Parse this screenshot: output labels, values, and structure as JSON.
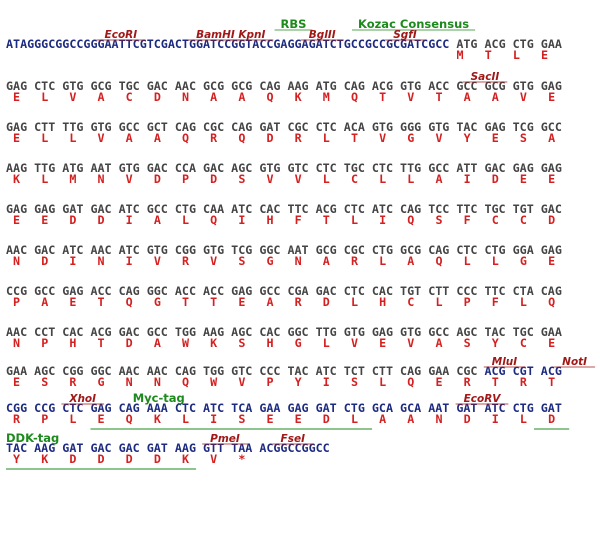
{
  "blocks": [
    {
      "annotations": [
        {
          "label": "RBS",
          "kind": "tag"
        },
        {
          "label": "Kozac Consensus",
          "kind": "tag"
        },
        {
          "label": "EcoRI",
          "kind": "site"
        },
        {
          "label": "BamHI",
          "kind": "site"
        },
        {
          "label": "KpnI",
          "kind": "site"
        },
        {
          "label": "BglII",
          "kind": "site"
        },
        {
          "label": "SgfI",
          "kind": "site"
        }
      ],
      "dna": [
        {
          "text": "ATAGGGCGGCCGGGAATTCGTCGACTGGATCCGGTACCGAGGAGATCTGCCGCCGCGATCGCC",
          "color": "#1c2a80"
        },
        {
          "text": " ATG ACG CTG GAA",
          "color": "#444444"
        }
      ],
      "protein": [
        "M",
        "T",
        "L",
        "E"
      ]
    },
    {
      "annotations": [
        {
          "label": "SacII",
          "kind": "site"
        }
      ],
      "dna": [
        {
          "text": "GAG CTC GTG GCG TGC GAC AAC GCG GCG CAG AAG ATG CAG ACG GTG ACC GCC GCG GTG GAG",
          "color": "#444444"
        }
      ],
      "protein": [
        "E",
        "L",
        "V",
        "A",
        "C",
        "D",
        "N",
        "A",
        "A",
        "Q",
        "K",
        "M",
        "Q",
        "T",
        "V",
        "T",
        "A",
        "A",
        "V",
        "E"
      ]
    },
    {
      "annotations": [],
      "dna": [
        {
          "text": "GAG CTT TTG GTG GCC GCT CAG CGC CAG GAT CGC CTC ACA GTG GGG GTG TAC GAG TCG GCC",
          "color": "#444444"
        }
      ],
      "protein": [
        "E",
        "L",
        "L",
        "V",
        "A",
        "A",
        "Q",
        "R",
        "Q",
        "D",
        "R",
        "L",
        "T",
        "V",
        "G",
        "V",
        "Y",
        "E",
        "S",
        "A"
      ]
    },
    {
      "annotations": [],
      "dna": [
        {
          "text": "AAG TTG ATG AAT GTG GAC CCA GAC AGC GTG GTC CTC TGC CTC TTG GCC ATT GAC GAG GAG",
          "color": "#444444"
        }
      ],
      "protein": [
        "K",
        "L",
        "M",
        "N",
        "V",
        "D",
        "P",
        "D",
        "S",
        "V",
        "V",
        "L",
        "C",
        "L",
        "L",
        "A",
        "I",
        "D",
        "E",
        "E"
      ]
    },
    {
      "annotations": [],
      "dna": [
        {
          "text": "GAG GAG GAT GAC ATC GCC CTG CAA ATC CAC TTC ACG CTC ATC CAG TCC TTC TGC TGT GAC",
          "color": "#444444"
        }
      ],
      "protein": [
        "E",
        "E",
        "D",
        "D",
        "I",
        "A",
        "L",
        "Q",
        "I",
        "H",
        "F",
        "T",
        "L",
        "I",
        "Q",
        "S",
        "F",
        "C",
        "C",
        "D"
      ]
    },
    {
      "annotations": [],
      "dna": [
        {
          "text": "AAC GAC ATC AAC ATC GTG CGG GTG TCG GGC AAT GCG CGC CTG GCG CAG CTC CTG GGA GAG",
          "color": "#444444"
        }
      ],
      "protein": [
        "N",
        "D",
        "I",
        "N",
        "I",
        "V",
        "R",
        "V",
        "S",
        "G",
        "N",
        "A",
        "R",
        "L",
        "A",
        "Q",
        "L",
        "L",
        "G",
        "E"
      ]
    },
    {
      "annotations": [],
      "dna": [
        {
          "text": "CCG GCC GAG ACC CAG GGC ACC ACC GAG GCC CGA GAC CTC CAC TGT CTT CCC TTC CTA CAG",
          "color": "#444444"
        }
      ],
      "protein": [
        "P",
        "A",
        "E",
        "T",
        "Q",
        "G",
        "T",
        "T",
        "E",
        "A",
        "R",
        "D",
        "L",
        "H",
        "C",
        "L",
        "P",
        "F",
        "L",
        "Q"
      ]
    },
    {
      "annotations": [],
      "dna": [
        {
          "text": "AAC CCT CAC ACG GAC GCC TGG AAG AGC CAC GGC TTG GTG GAG GTG GCC AGC TAC TGC GAA",
          "color": "#444444"
        }
      ],
      "protein": [
        "N",
        "P",
        "H",
        "T",
        "D",
        "A",
        "W",
        "K",
        "S",
        "H",
        "G",
        "L",
        "V",
        "E",
        "V",
        "A",
        "S",
        "Y",
        "C",
        "E"
      ]
    },
    {
      "annotations": [
        {
          "label": "MluI",
          "kind": "site"
        },
        {
          "label": "NotI",
          "kind": "site"
        }
      ],
      "dna": [
        {
          "text": "GAA AGC CGG GGC AAC AAC CAG TGG GTC CCC TAC ATC TCT CTT CAG GAA CGC ",
          "color": "#444444"
        },
        {
          "text": "ACG CGT ACG",
          "color": "#1c2a80"
        }
      ],
      "protein": [
        "E",
        "S",
        "R",
        "G",
        "N",
        "N",
        "Q",
        "W",
        "V",
        "P",
        "Y",
        "I",
        "S",
        "L",
        "Q",
        "E",
        "R",
        "T",
        "R",
        "T"
      ]
    },
    {
      "annotations": [
        {
          "label": "XhoI",
          "kind": "site"
        },
        {
          "label": "Myc-tag",
          "kind": "tag"
        },
        {
          "label": "EcoRV",
          "kind": "site"
        }
      ],
      "dna": [
        {
          "text": "CGG CCG CTC GAG CAG AAA CTC ATC TCA GAA GAG GAT CTG GCA GCA AAT GAT ATC CTG GAT",
          "color": "#1c2a80"
        }
      ],
      "protein": [
        "R",
        "P",
        "L",
        "E",
        "Q",
        "K",
        "L",
        "I",
        "S",
        "E",
        "E",
        "D",
        "L",
        "A",
        "A",
        "N",
        "D",
        "I",
        "L",
        "D"
      ]
    },
    {
      "annotations": [
        {
          "label": "DDK-tag",
          "kind": "tag"
        },
        {
          "label": "PmeI",
          "kind": "site"
        },
        {
          "label": "FseI",
          "kind": "site"
        }
      ],
      "dna": [
        {
          "text": "TAC AAG GAT GAC GAC GAT AAG GTT TAA ACGGCCGGCC",
          "color": "#1c2a80"
        }
      ],
      "protein": [
        "Y",
        "K",
        "D",
        "D",
        "D",
        "D",
        "K",
        "V",
        "*"
      ]
    }
  ]
}
